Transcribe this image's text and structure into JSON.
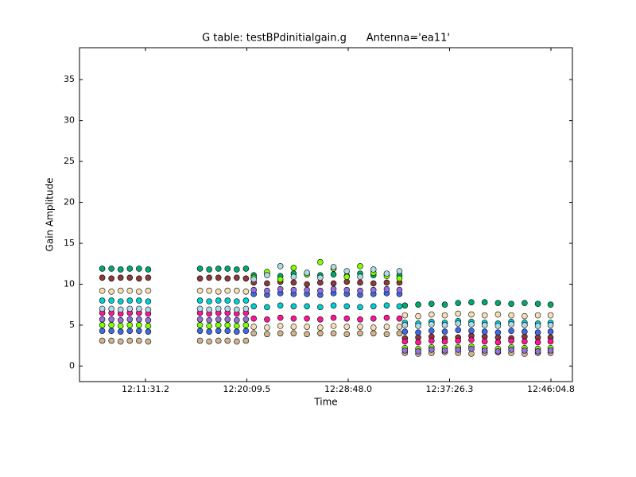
{
  "chart_data": {
    "type": "scatter",
    "title": "G table: testBPdinitialgain.g      Antenna='ea11'",
    "x_label": "Time",
    "y_label": "Gain Amplitude",
    "x": [
      43670,
      43717,
      43764,
      43811,
      43858,
      43905,
      44170,
      44217,
      44264,
      44311,
      44358,
      44405,
      44445,
      44513,
      44581,
      44649,
      44717,
      44785,
      44853,
      44921,
      44989,
      45057,
      45125,
      45190,
      45218,
      45286,
      45354,
      45422,
      45490,
      45558,
      45626,
      45694,
      45762,
      45830,
      45898,
      45963
    ],
    "xlim": [
      43553.7,
      46074.6
    ],
    "xticks": [
      {
        "value": 43891.2,
        "label": "12:11:31.2"
      },
      {
        "value": 44409.5,
        "label": "12:20:09.5"
      },
      {
        "value": 44928.0,
        "label": "12:28:48.0"
      },
      {
        "value": 45446.3,
        "label": "12:37:26.3"
      },
      {
        "value": 45964.8,
        "label": "12:46:04.8"
      }
    ],
    "ylim": [
      -1.9,
      38.9
    ],
    "yticks": [
      0,
      5,
      10,
      15,
      20,
      25,
      30,
      35
    ],
    "series": [
      {
        "color": "#00a86b",
        "values": [
          11.9,
          11.9,
          11.8,
          11.9,
          11.9,
          11.8,
          11.9,
          11.8,
          11.9,
          11.9,
          11.8,
          11.9,
          11.1,
          11.2,
          11.0,
          11.3,
          11.2,
          11.1,
          11.2,
          11.0,
          11.3,
          11.1,
          11.2,
          11.1,
          7.4,
          7.5,
          7.6,
          7.5,
          7.7,
          7.8,
          7.8,
          7.7,
          7.6,
          7.7,
          7.6,
          7.5
        ]
      },
      {
        "color": "#8b3a3a",
        "values": [
          10.8,
          10.7,
          10.8,
          10.8,
          10.7,
          10.8,
          10.7,
          10.8,
          10.8,
          10.7,
          10.8,
          10.7,
          10.2,
          10.1,
          10.3,
          10.2,
          10.0,
          10.2,
          10.1,
          10.3,
          10.2,
          10.1,
          10.2,
          10.2,
          3.4,
          3.5,
          3.6,
          3.4,
          3.5,
          3.7,
          3.6,
          3.5,
          3.4,
          3.6,
          3.5,
          3.5
        ]
      },
      {
        "color": "#f5deb3",
        "values": [
          9.2,
          9.1,
          9.2,
          9.2,
          9.1,
          9.2,
          9.2,
          9.2,
          9.1,
          9.2,
          9.2,
          9.1,
          4.8,
          4.7,
          4.9,
          4.8,
          4.8,
          4.7,
          4.9,
          4.8,
          4.8,
          4.7,
          4.8,
          4.8,
          6.2,
          6.1,
          6.3,
          6.2,
          6.4,
          6.3,
          6.2,
          6.3,
          6.2,
          6.1,
          6.2,
          6.2
        ]
      },
      {
        "color": "#00ced1",
        "values": [
          8.0,
          8.0,
          7.9,
          8.0,
          8.0,
          7.9,
          8.0,
          7.9,
          8.0,
          8.0,
          7.9,
          8.0,
          7.3,
          7.2,
          7.4,
          7.3,
          7.3,
          7.2,
          7.4,
          7.3,
          7.2,
          7.3,
          7.4,
          7.3,
          5.3,
          5.2,
          5.4,
          5.3,
          5.5,
          5.4,
          5.3,
          5.2,
          5.4,
          5.3,
          5.2,
          5.3
        ]
      },
      {
        "color": "#ff1493",
        "values": [
          6.5,
          6.5,
          6.4,
          6.5,
          6.5,
          6.4,
          6.5,
          6.4,
          6.5,
          6.5,
          6.4,
          6.5,
          5.8,
          5.7,
          5.9,
          5.8,
          5.8,
          5.7,
          5.9,
          5.8,
          5.7,
          5.8,
          5.9,
          5.8,
          3.0,
          2.9,
          3.1,
          3.0,
          3.1,
          3.2,
          3.0,
          2.9,
          3.1,
          3.0,
          2.9,
          3.0
        ]
      },
      {
        "color": "#7fff00",
        "values": [
          5.0,
          5.0,
          4.9,
          5.0,
          5.0,
          4.9,
          5.0,
          4.9,
          5.0,
          5.0,
          4.9,
          5.0,
          10.8,
          11.5,
          10.6,
          12.0,
          11.2,
          12.7,
          11.9,
          10.9,
          12.2,
          11.4,
          11.0,
          10.7,
          2.2,
          2.1,
          2.3,
          2.2,
          2.3,
          2.4,
          2.2,
          2.1,
          2.3,
          2.2,
          2.1,
          2.2
        ]
      },
      {
        "color": "#4169e1",
        "values": [
          4.3,
          4.3,
          4.2,
          4.3,
          4.3,
          4.2,
          4.3,
          4.2,
          4.3,
          4.3,
          4.2,
          4.3,
          8.8,
          8.7,
          8.9,
          8.8,
          8.8,
          8.7,
          8.9,
          8.8,
          8.7,
          8.8,
          8.9,
          8.8,
          4.2,
          4.1,
          4.3,
          4.2,
          4.4,
          4.3,
          4.2,
          4.1,
          4.3,
          4.2,
          4.1,
          4.2
        ]
      },
      {
        "color": "#d2b48c",
        "values": [
          3.1,
          3.1,
          3.0,
          3.1,
          3.1,
          3.0,
          3.1,
          3.0,
          3.1,
          3.1,
          3.0,
          3.1,
          4.0,
          3.9,
          4.0,
          4.0,
          3.9,
          4.0,
          4.0,
          3.9,
          4.0,
          4.0,
          3.9,
          4.0,
          1.6,
          1.5,
          1.6,
          1.7,
          1.6,
          1.5,
          1.6,
          1.7,
          1.6,
          1.5,
          1.6,
          1.6
        ]
      },
      {
        "color": "#add8e6",
        "values": [
          7.0,
          7.0,
          6.9,
          7.0,
          7.0,
          6.9,
          7.0,
          6.9,
          7.0,
          7.0,
          6.9,
          7.0,
          10.6,
          11.1,
          12.2,
          10.9,
          11.4,
          10.8,
          12.1,
          11.6,
          10.9,
          11.8,
          11.3,
          11.6,
          5.0,
          4.9,
          5.1,
          5.0,
          5.2,
          5.1,
          5.0,
          4.9,
          5.1,
          5.0,
          4.9,
          5.0
        ]
      },
      {
        "color": "#9370db",
        "values": [
          5.7,
          5.7,
          5.6,
          5.7,
          5.7,
          5.6,
          5.7,
          5.6,
          5.7,
          5.7,
          5.6,
          5.7,
          9.3,
          9.2,
          9.4,
          9.3,
          9.3,
          9.2,
          9.4,
          9.3,
          9.2,
          9.3,
          9.4,
          9.3,
          1.9,
          1.8,
          2.0,
          1.9,
          2.0,
          2.1,
          1.9,
          1.8,
          2.0,
          1.9,
          1.8,
          1.9
        ]
      }
    ]
  }
}
